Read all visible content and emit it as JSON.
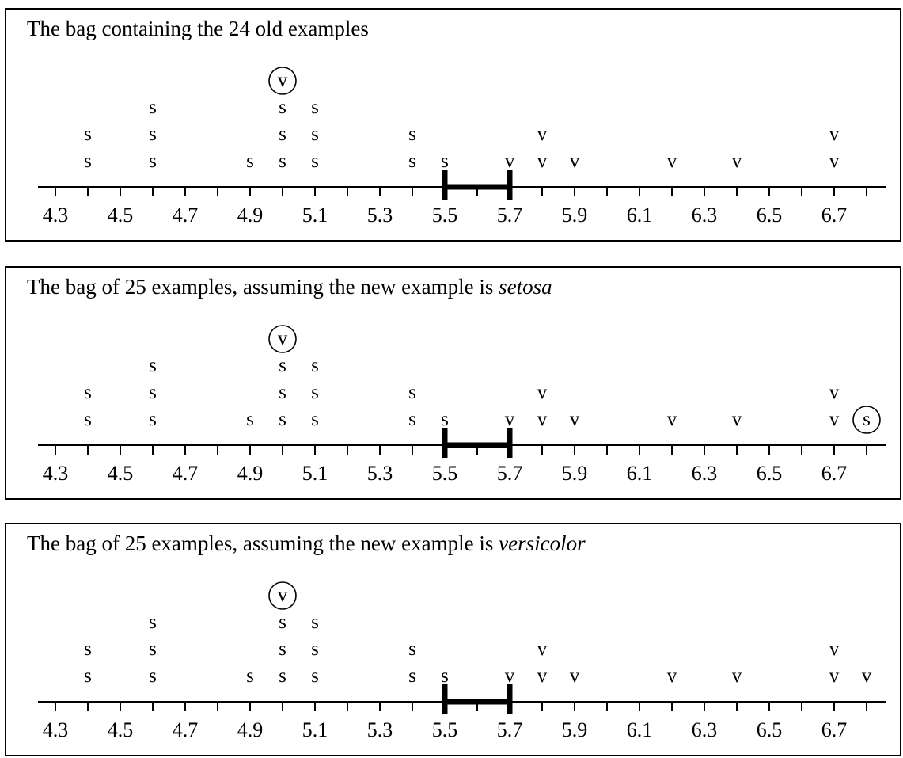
{
  "axis": {
    "ticks": [
      4.3,
      4.4,
      4.5,
      4.6,
      4.7,
      4.8,
      4.9,
      5.0,
      5.1,
      5.2,
      5.3,
      5.4,
      5.5,
      5.6,
      5.7,
      5.8,
      5.9,
      6.0,
      6.1,
      6.2,
      6.3,
      6.4,
      6.5,
      6.6,
      6.7,
      6.8
    ],
    "labels": [
      "4.3",
      "4.5",
      "4.7",
      "4.9",
      "5.1",
      "5.3",
      "5.5",
      "5.7",
      "5.9",
      "6.1",
      "6.3",
      "6.5",
      "6.7"
    ],
    "interval": [
      5.5,
      5.7
    ]
  },
  "base_examples": [
    {
      "x": 4.4,
      "label": "s",
      "count": 2
    },
    {
      "x": 4.6,
      "label": "s",
      "count": 3
    },
    {
      "x": 4.9,
      "label": "s",
      "count": 1
    },
    {
      "x": 5.0,
      "label": "s",
      "count": 3
    },
    {
      "x": 5.0,
      "label": "v",
      "count": 1,
      "circled": true
    },
    {
      "x": 5.1,
      "label": "s",
      "count": 3
    },
    {
      "x": 5.4,
      "label": "s",
      "count": 2
    },
    {
      "x": 5.5,
      "label": "s",
      "count": 1
    },
    {
      "x": 5.7,
      "label": "v",
      "count": 1
    },
    {
      "x": 5.8,
      "label": "v",
      "count": 2
    },
    {
      "x": 5.9,
      "label": "v",
      "count": 1
    },
    {
      "x": 6.2,
      "label": "v",
      "count": 1
    },
    {
      "x": 6.4,
      "label": "v",
      "count": 1
    },
    {
      "x": 6.7,
      "label": "v",
      "count": 2
    }
  ],
  "panels": [
    {
      "title": "The bag containing the 24 old examples",
      "title_em": "",
      "new_example": null
    },
    {
      "title": "The bag of 25 examples, assuming the new example is ",
      "title_em": "setosa",
      "new_example": {
        "x": 6.8,
        "label": "s",
        "circled": true
      }
    },
    {
      "title": "The bag of 25 examples, assuming the new example is ",
      "title_em": "versicolor",
      "new_example": {
        "x": 6.8,
        "label": "v",
        "circled": false
      }
    }
  ]
}
